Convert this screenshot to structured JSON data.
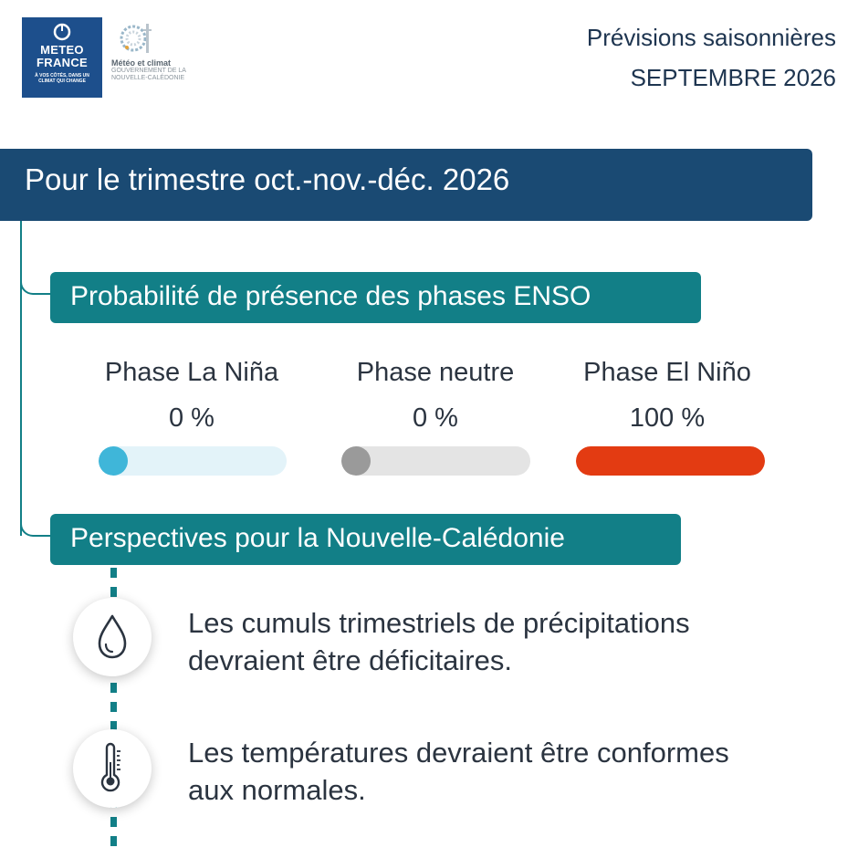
{
  "logos": {
    "meteo_france": {
      "name_line1": "METEO",
      "name_line2": "FRANCE",
      "tagline_line1": "À vos côtés, dans un",
      "tagline_line2": "climat qui change",
      "background": "#1d4f8c"
    },
    "meteo_climat": {
      "name": "Météo et climat",
      "sub_line1": "Gouvernement de la",
      "sub_line2": "Nouvelle-Calédonie"
    }
  },
  "header": {
    "line1": "Prévisions saisonnières",
    "line2": "SEPTEMBRE 2026"
  },
  "banner": {
    "title": "Pour le trimestre oct.-nov.-déc. 2026",
    "color": "#1a4a73"
  },
  "enso": {
    "title": "Probabilité de présence des phases ENSO",
    "phases": [
      {
        "label": "Phase La Niña",
        "value": "0 %",
        "probability": 0,
        "track_color": "#e3f3f9",
        "fill_color": "#3fb6d9"
      },
      {
        "label": "Phase neutre",
        "value": "0 %",
        "probability": 0,
        "track_color": "#e4e4e4",
        "fill_color": "#9a9a9a"
      },
      {
        "label": "Phase El Niño",
        "value": "100 %",
        "probability": 100,
        "track_color": "#f7d0c4",
        "fill_color": "#e33b12"
      }
    ]
  },
  "perspectives": {
    "title": "Perspectives pour la Nouvelle-Calédonie",
    "items": [
      {
        "icon": "water-drop-icon",
        "text_line1": "Les cumuls trimestriels de précipitations",
        "text_line2": "devraient être déficitaires."
      },
      {
        "icon": "thermometer-icon",
        "text_line1": "Les températures devraient être conformes",
        "text_line2": "aux normales."
      }
    ]
  },
  "accent_color": "#127f87"
}
